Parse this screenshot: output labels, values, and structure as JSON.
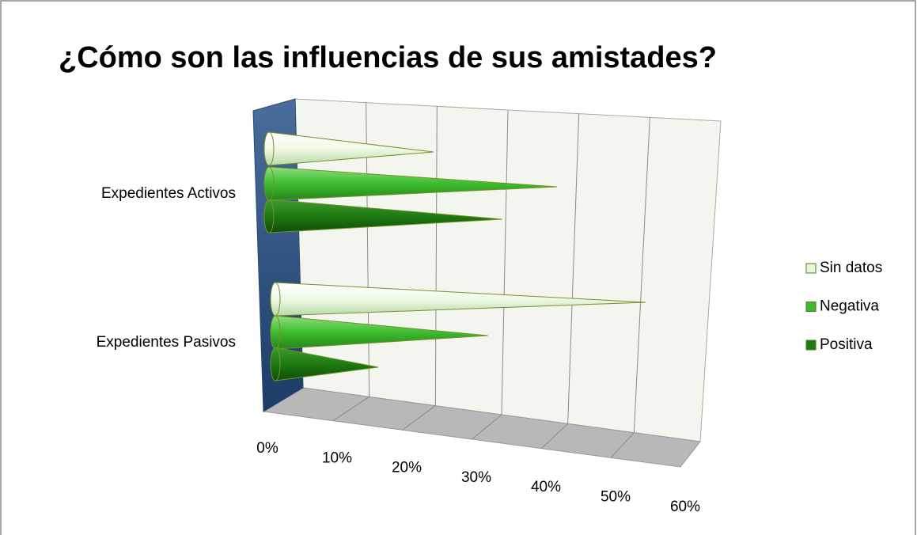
{
  "chart_data": {
    "type": "bar",
    "orientation": "horizontal",
    "three_d": true,
    "title": "¿Cómo son las influencias de sus amistades?",
    "categories": [
      "Expedientes Activos",
      "Expedientes Pasivos"
    ],
    "series": [
      {
        "name": "Sin datos",
        "color": "#e6f7d9",
        "values": [
          24,
          54
        ]
      },
      {
        "name": "Negativa",
        "color": "#3dbb2e",
        "values": [
          42,
          31
        ]
      },
      {
        "name": "Positiva",
        "color": "#1e7a12",
        "values": [
          34,
          15
        ]
      }
    ],
    "xlim": [
      0,
      60
    ],
    "xticks": [
      {
        "value": 0,
        "label": "0%"
      },
      {
        "value": 10,
        "label": "10%"
      },
      {
        "value": 20,
        "label": "20%"
      },
      {
        "value": 30,
        "label": "30%"
      },
      {
        "value": 40,
        "label": "40%"
      },
      {
        "value": 50,
        "label": "50%"
      },
      {
        "value": 60,
        "label": "60%"
      }
    ],
    "grid": true,
    "legend": "right"
  }
}
